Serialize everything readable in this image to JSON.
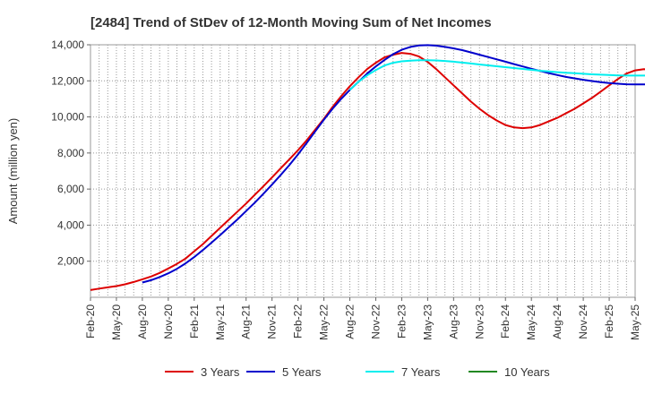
{
  "chart_data": {
    "type": "line",
    "title": "[2484]  Trend of StDev of 12-Month Moving Sum of Net Incomes",
    "xlabel": "",
    "ylabel": "Amount (million yen)",
    "ylim": [
      0,
      14000
    ],
    "grid": true,
    "legend_position": "bottom",
    "y_ticks": [
      "2,000",
      "4,000",
      "6,000",
      "8,000",
      "10,000",
      "12,000",
      "14,000"
    ],
    "y_tick_values": [
      2000,
      4000,
      6000,
      8000,
      10000,
      12000,
      14000
    ],
    "x_ticks": [
      "Feb-20",
      "May-20",
      "Aug-20",
      "Nov-20",
      "Feb-21",
      "May-21",
      "Aug-21",
      "Nov-21",
      "Feb-22",
      "May-22",
      "Aug-22",
      "Nov-22",
      "Feb-23",
      "May-23",
      "Aug-23",
      "Nov-23",
      "Feb-24",
      "May-24",
      "Aug-24",
      "Nov-24",
      "Feb-25",
      "May-25"
    ],
    "series": [
      {
        "name": "3 Years",
        "color": "#dd0000",
        "start_index": 0,
        "values": [
          400,
          480,
          550,
          620,
          720,
          850,
          1000,
          1150,
          1350,
          1600,
          1850,
          2150,
          2550,
          2950,
          3400,
          3850,
          4300,
          4750,
          5200,
          5680,
          6150,
          6650,
          7150,
          7650,
          8150,
          8700,
          9300,
          9900,
          10550,
          11150,
          11700,
          12200,
          12650,
          13000,
          13300,
          13450,
          13550,
          13500,
          13350,
          13050,
          12650,
          12200,
          11750,
          11300,
          10850,
          10450,
          10100,
          9800,
          9550,
          9420,
          9380,
          9420,
          9550,
          9750,
          9950,
          10200,
          10450,
          10750,
          11050,
          11400,
          11750,
          12100,
          12400,
          12580,
          12650,
          12600
        ]
      },
      {
        "name": "5 Years",
        "color": "#0000cc",
        "start_index": 6,
        "values": [
          820,
          950,
          1120,
          1330,
          1580,
          1880,
          2230,
          2620,
          3030,
          3450,
          3880,
          4320,
          4780,
          5250,
          5740,
          6250,
          6780,
          7330,
          7920,
          8550,
          9200,
          9850,
          10450,
          11000,
          11500,
          11950,
          12400,
          12800,
          13150,
          13480,
          13720,
          13880,
          13960,
          13980,
          13950,
          13880,
          13800,
          13700,
          13580,
          13450,
          13320,
          13190,
          13060,
          12930,
          12800,
          12670,
          12550,
          12430,
          12320,
          12220,
          12140,
          12060,
          11990,
          11930,
          11880,
          11840,
          11810,
          11800,
          11800,
          11800
        ]
      },
      {
        "name": "7 Years",
        "color": "#00eeee",
        "start_index": 30,
        "values": [
          11500,
          11950,
          12300,
          12600,
          12850,
          13000,
          13080,
          13120,
          13140,
          13140,
          13130,
          13100,
          13060,
          13010,
          12960,
          12910,
          12860,
          12810,
          12760,
          12710,
          12660,
          12610,
          12560,
          12520,
          12480,
          12450,
          12420,
          12390,
          12360,
          12340,
          12320,
          12300,
          12290,
          12290,
          12290,
          12300
        ]
      },
      {
        "name": "10 Years",
        "color": "#228822",
        "start_index": 0,
        "values": []
      }
    ]
  }
}
